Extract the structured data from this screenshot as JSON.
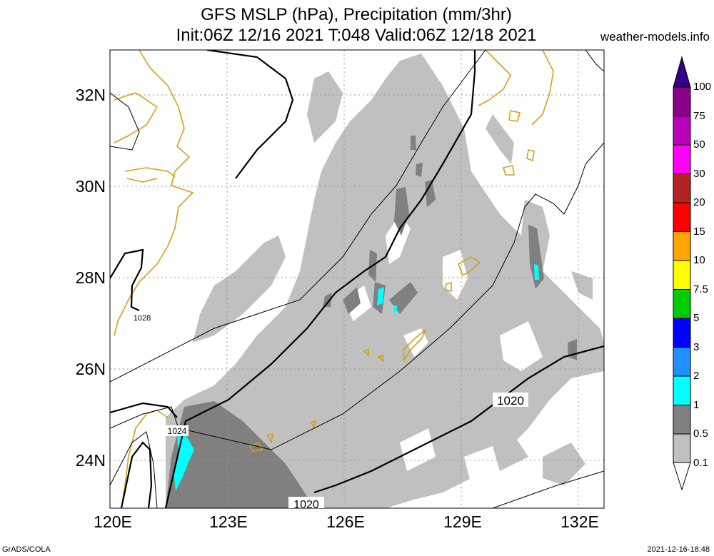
{
  "header": {
    "title_line1": "GFS MSLP (hPa), Precipitation (mm/3hr)",
    "title_line2": "Init:06Z 12/16 2021 T:048 Valid:06Z 12/18 2021",
    "site": "weather-models.info"
  },
  "footer": {
    "left": "GrADS/COLA",
    "right": "2021-12-16-18:48"
  },
  "map": {
    "lat_labels": [
      "32N",
      "30N",
      "28N",
      "26N",
      "24N"
    ],
    "lon_labels": [
      "120E",
      "123E",
      "126E",
      "129E",
      "132E"
    ],
    "isobar_labels": [
      "1028",
      "1024",
      "1020",
      "1020"
    ],
    "coastline_color": "#d4a017",
    "precip_light_color": "#c0c0c0",
    "precip_mid_color": "#808080",
    "precip_heavy_color": "#00ffff"
  },
  "colorbar": {
    "levels": [
      "100",
      "75",
      "50",
      "30",
      "20",
      "15",
      "10",
      "7.5",
      "5",
      "3",
      "2",
      "1",
      "0.5",
      "0.1"
    ],
    "colors": [
      "#8b008b",
      "#bb00bb",
      "#ff00ff",
      "#b22222",
      "#ff0000",
      "#ffa500",
      "#ffff00",
      "#00cc00",
      "#0000ff",
      "#1e90ff",
      "#00ffff",
      "#808080",
      "#c0c0c0"
    ],
    "top_color": "#330088"
  }
}
